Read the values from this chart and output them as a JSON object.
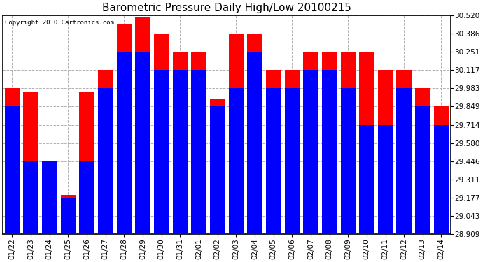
{
  "title": "Barometric Pressure Daily High/Low 20100215",
  "copyright": "Copyright 2010 Cartronics.com",
  "dates": [
    "01/22",
    "01/23",
    "01/24",
    "01/25",
    "01/26",
    "01/27",
    "01/28",
    "01/29",
    "01/30",
    "01/31",
    "02/01",
    "02/02",
    "02/03",
    "02/04",
    "02/05",
    "02/06",
    "02/07",
    "02/08",
    "02/09",
    "02/10",
    "02/11",
    "02/12",
    "02/13",
    "02/14"
  ],
  "highs": [
    29.983,
    29.954,
    29.446,
    29.2,
    29.954,
    30.117,
    30.455,
    30.51,
    30.386,
    30.251,
    30.251,
    29.9,
    30.386,
    30.386,
    30.117,
    30.117,
    30.251,
    30.251,
    30.251,
    30.251,
    30.117,
    30.117,
    29.983,
    29.849
  ],
  "lows": [
    29.849,
    29.446,
    29.446,
    29.177,
    29.446,
    29.983,
    30.251,
    30.251,
    30.117,
    30.117,
    30.117,
    29.849,
    29.983,
    30.251,
    29.983,
    29.983,
    30.117,
    30.117,
    29.983,
    29.714,
    29.714,
    29.983,
    29.849,
    29.714
  ],
  "ymin": 28.909,
  "ymax": 30.52,
  "yticks": [
    28.909,
    29.043,
    29.177,
    29.311,
    29.446,
    29.58,
    29.714,
    29.849,
    29.983,
    30.117,
    30.251,
    30.386,
    30.52
  ],
  "bar_width": 0.8,
  "high_color": "#ff0000",
  "low_color": "#0000ff",
  "bg_color": "#ffffff",
  "grid_color": "#b0b0b0",
  "title_fontsize": 11,
  "tick_fontsize": 7.5,
  "copyright_fontsize": 6.5
}
